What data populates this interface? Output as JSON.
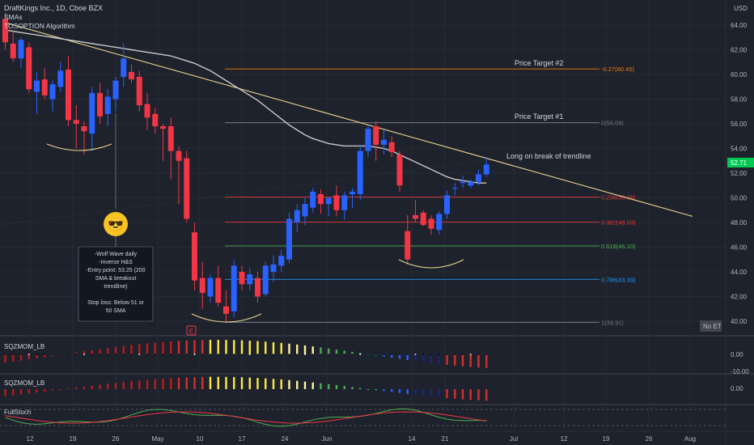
{
  "header": {
    "symbol_line": "DraftKings Inc., 1D, Cboe BZX",
    "indicator_1": "SMAs",
    "indicator_2": "TOSOPTION Algorithm"
  },
  "price_axis": {
    "currency": "USD",
    "ticks": [
      "64.00",
      "62.00",
      "60.00",
      "58.00",
      "56.00",
      "54.00",
      "52.00",
      "50.00",
      "48.00",
      "46.00",
      "44.00",
      "42.00",
      "40.00"
    ],
    "last_price": "52.71",
    "session_badge": "No ET"
  },
  "time_axis": {
    "ticks": [
      "12",
      "19",
      "26",
      "May",
      "10",
      "17",
      "24",
      "Jun",
      "14",
      "21",
      "Jul",
      "12",
      "19",
      "26",
      "Aug"
    ]
  },
  "annotations": {
    "target_2": "Price Target #2",
    "target_1": "Price Target #1",
    "breakout": "Long on break of trendline",
    "earnings_marker": "E",
    "emoji": "😎",
    "note_lines": [
      "-Wolf Wave daily",
      "-Inverse H&S",
      "-Entry point: 53.25 (200",
      "SMA & breakout",
      "trendline)",
      "",
      "Stop loss: Below 51 or",
      "50 SMA"
    ]
  },
  "fib_levels": [
    {
      "label": "-0.27(60.45)",
      "price": 60.45,
      "color": "#f57c00"
    },
    {
      "label": "0(56.09)",
      "price": 56.09,
      "color": "#787b86"
    },
    {
      "label": "0.236(50.06)",
      "price": 50.06,
      "color": "#e53935"
    },
    {
      "label": "0.382(48.03)",
      "price": 48.03,
      "color": "#e53935"
    },
    {
      "label": "0.618(46.10)",
      "price": 46.1,
      "color": "#4caf50"
    },
    {
      "label": "0.786(43.39)",
      "price": 43.39,
      "color": "#2196f3"
    },
    {
      "label": "1(39.91)",
      "price": 39.91,
      "color": "#787b86"
    }
  ],
  "panels": {
    "sqz1_label": "SQZMOM_LB",
    "sqz1_ticks": [
      "0.00",
      "-10.00"
    ],
    "sqz2_label": "SQZMOM_LB",
    "sqz2_ticks": [
      "0.00"
    ],
    "stoch_label": "FullStoch"
  },
  "colors": {
    "up": "#2962ff",
    "down": "#f23645",
    "sma": "#c8c8c8",
    "trendline": "#e8d48a",
    "last_price_bg": "#00c853"
  },
  "chart_data": {
    "type": "candlestick",
    "title": "DraftKings Inc., 1D, Cboe BZX",
    "ylim": [
      39.5,
      65.5
    ],
    "candles": [
      {
        "o": 64.5,
        "h": 65.0,
        "l": 62.0,
        "c": 62.6
      },
      {
        "o": 62.5,
        "h": 63.5,
        "l": 61.0,
        "c": 61.3
      },
      {
        "o": 61.3,
        "h": 63.0,
        "l": 60.5,
        "c": 62.8
      },
      {
        "o": 62.2,
        "h": 62.6,
        "l": 58.5,
        "c": 58.8
      },
      {
        "o": 58.6,
        "h": 60.2,
        "l": 56.8,
        "c": 59.5
      },
      {
        "o": 59.6,
        "h": 60.5,
        "l": 58.0,
        "c": 58.3
      },
      {
        "o": 58.0,
        "h": 59.5,
        "l": 57.0,
        "c": 59.2
      },
      {
        "o": 59.0,
        "h": 61.0,
        "l": 58.6,
        "c": 60.3
      },
      {
        "o": 60.4,
        "h": 61.5,
        "l": 55.8,
        "c": 56.3
      },
      {
        "o": 56.3,
        "h": 57.5,
        "l": 54.0,
        "c": 56.0
      },
      {
        "o": 55.8,
        "h": 56.2,
        "l": 53.5,
        "c": 55.4
      },
      {
        "o": 55.2,
        "h": 59.0,
        "l": 53.8,
        "c": 58.5
      },
      {
        "o": 58.5,
        "h": 59.3,
        "l": 56.0,
        "c": 56.6
      },
      {
        "o": 56.8,
        "h": 58.8,
        "l": 55.8,
        "c": 58.2
      },
      {
        "o": 58.0,
        "h": 59.8,
        "l": 57.0,
        "c": 59.5
      },
      {
        "o": 59.8,
        "h": 62.5,
        "l": 59.0,
        "c": 61.3
      },
      {
        "o": 60.2,
        "h": 60.8,
        "l": 59.3,
        "c": 59.6
      },
      {
        "o": 59.8,
        "h": 60.3,
        "l": 57.0,
        "c": 57.5
      },
      {
        "o": 57.6,
        "h": 58.5,
        "l": 55.5,
        "c": 56.5
      },
      {
        "o": 56.8,
        "h": 57.3,
        "l": 55.2,
        "c": 55.8
      },
      {
        "o": 55.8,
        "h": 56.0,
        "l": 53.0,
        "c": 55.6
      },
      {
        "o": 55.8,
        "h": 56.5,
        "l": 51.5,
        "c": 53.8
      },
      {
        "o": 53.8,
        "h": 54.2,
        "l": 49.5,
        "c": 53.0
      },
      {
        "o": 53.2,
        "h": 53.8,
        "l": 48.0,
        "c": 48.3
      },
      {
        "o": 47.2,
        "h": 48.0,
        "l": 42.5,
        "c": 43.3
      },
      {
        "o": 43.5,
        "h": 44.8,
        "l": 41.0,
        "c": 42.3
      },
      {
        "o": 42.0,
        "h": 43.8,
        "l": 41.5,
        "c": 43.5
      },
      {
        "o": 43.5,
        "h": 44.5,
        "l": 41.2,
        "c": 41.5
      },
      {
        "o": 41.2,
        "h": 42.5,
        "l": 40.0,
        "c": 40.6
      },
      {
        "o": 40.8,
        "h": 45.0,
        "l": 40.3,
        "c": 44.5
      },
      {
        "o": 44.0,
        "h": 44.5,
        "l": 42.5,
        "c": 43.0
      },
      {
        "o": 43.0,
        "h": 44.3,
        "l": 42.5,
        "c": 43.8
      },
      {
        "o": 43.5,
        "h": 44.0,
        "l": 41.5,
        "c": 42.0
      },
      {
        "o": 42.2,
        "h": 44.8,
        "l": 42.0,
        "c": 44.5
      },
      {
        "o": 44.0,
        "h": 45.3,
        "l": 43.2,
        "c": 44.6
      },
      {
        "o": 44.5,
        "h": 45.8,
        "l": 44.0,
        "c": 45.3
      },
      {
        "o": 45.0,
        "h": 48.8,
        "l": 44.7,
        "c": 48.3
      },
      {
        "o": 48.0,
        "h": 49.5,
        "l": 47.2,
        "c": 49.0
      },
      {
        "o": 48.5,
        "h": 50.0,
        "l": 47.8,
        "c": 49.5
      },
      {
        "o": 49.2,
        "h": 50.8,
        "l": 48.8,
        "c": 50.5
      },
      {
        "o": 50.3,
        "h": 50.7,
        "l": 48.7,
        "c": 49.5
      },
      {
        "o": 49.5,
        "h": 50.0,
        "l": 48.5,
        "c": 50.0
      },
      {
        "o": 50.2,
        "h": 51.0,
        "l": 48.5,
        "c": 49.0
      },
      {
        "o": 49.0,
        "h": 50.5,
        "l": 48.2,
        "c": 50.2
      },
      {
        "o": 50.3,
        "h": 50.8,
        "l": 49.2,
        "c": 50.5
      },
      {
        "o": 50.3,
        "h": 54.3,
        "l": 49.8,
        "c": 53.8
      },
      {
        "o": 53.8,
        "h": 55.9,
        "l": 53.3,
        "c": 55.6
      },
      {
        "o": 55.8,
        "h": 56.2,
        "l": 53.0,
        "c": 54.3
      },
      {
        "o": 54.3,
        "h": 55.5,
        "l": 53.5,
        "c": 54.7
      },
      {
        "o": 54.5,
        "h": 55.0,
        "l": 53.3,
        "c": 53.7
      },
      {
        "o": 53.5,
        "h": 53.8,
        "l": 50.5,
        "c": 51.0
      },
      {
        "o": 47.3,
        "h": 48.6,
        "l": 44.6,
        "c": 45.0
      },
      {
        "o": 48.6,
        "h": 49.8,
        "l": 48.0,
        "c": 48.3
      },
      {
        "o": 48.8,
        "h": 49.0,
        "l": 47.7,
        "c": 47.8
      },
      {
        "o": 48.3,
        "h": 48.6,
        "l": 47.0,
        "c": 47.5
      },
      {
        "o": 47.4,
        "h": 48.9,
        "l": 47.0,
        "c": 48.7
      },
      {
        "o": 48.7,
        "h": 50.6,
        "l": 48.3,
        "c": 50.2
      },
      {
        "o": 50.8,
        "h": 51.2,
        "l": 50.2,
        "c": 50.8
      },
      {
        "o": 51.2,
        "h": 51.8,
        "l": 50.8,
        "c": 51.3
      },
      {
        "o": 51.0,
        "h": 51.5,
        "l": 50.8,
        "c": 51.3
      },
      {
        "o": 51.3,
        "h": 52.3,
        "l": 51.0,
        "c": 51.9
      },
      {
        "o": 51.9,
        "h": 53.3,
        "l": 51.7,
        "c": 52.7
      }
    ],
    "sma": [
      63.6,
      63.5,
      63.4,
      63.3,
      63.2,
      63.1,
      63.0,
      62.9,
      62.8,
      62.7,
      62.6,
      62.5,
      62.4,
      62.3,
      62.2,
      62.1,
      62.0,
      61.9,
      61.8,
      61.7,
      61.6,
      61.5,
      61.3,
      61.1,
      60.9,
      60.6,
      60.3,
      59.9,
      59.5,
      59.1,
      58.7,
      58.3,
      57.9,
      57.4,
      56.9,
      56.4,
      55.9,
      55.5,
      55.1,
      54.8,
      54.6,
      54.4,
      54.3,
      54.2,
      54.2,
      54.2,
      54.2,
      54.1,
      54.0,
      53.8,
      53.5,
      53.2,
      52.9,
      52.6,
      52.3,
      52.0,
      51.7,
      51.5,
      51.4,
      51.3,
      51.2,
      51.2
    ],
    "trendline": {
      "x1": 0,
      "y1": 64.2,
      "x2": 82,
      "y2": 48.5
    },
    "hs_marker_price": 46.1,
    "stop_loss_price": 51.0
  }
}
